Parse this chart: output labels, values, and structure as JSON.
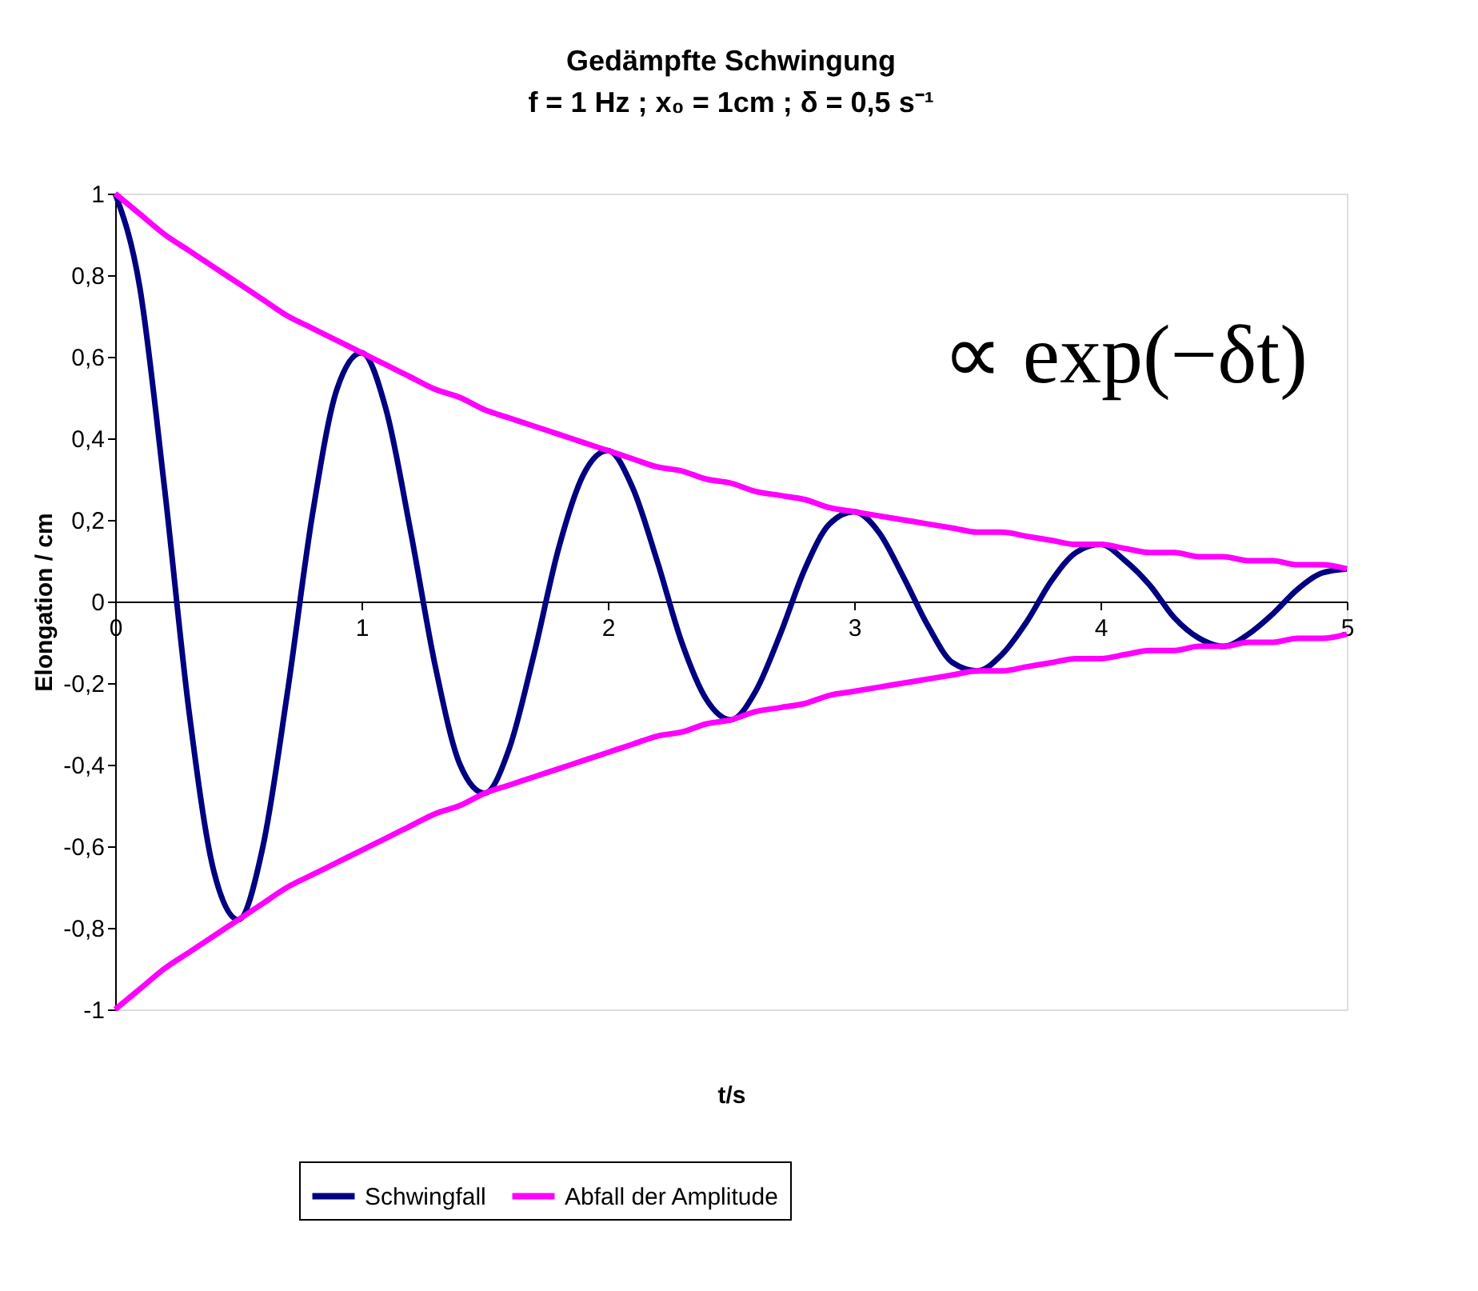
{
  "chart_data": {
    "type": "line",
    "title": "Gedämpfte Schwingung",
    "subtitle": "f = 1 Hz ; x₀ = 1cm ; δ = 0,5 s⁻¹",
    "xlabel": "t/s",
    "ylabel": "Elongation / cm",
    "annotations": [
      "∝ exp(−δt)"
    ],
    "x": [
      0,
      0.1,
      0.2,
      0.3,
      0.4,
      0.5,
      0.6,
      0.7,
      0.8,
      0.9,
      1,
      1.1,
      1.2,
      1.3,
      1.4,
      1.5,
      1.6,
      1.7,
      1.8,
      1.9,
      2,
      2.1,
      2.2,
      2.3,
      2.4,
      2.5,
      2.6,
      2.7,
      2.8,
      2.9,
      3,
      3.1,
      3.2,
      3.3,
      3.4,
      3.5,
      3.6,
      3.7,
      3.8,
      3.9,
      4,
      4.1,
      4.2,
      4.3,
      4.4,
      4.5,
      4.6,
      4.7,
      4.8,
      4.9,
      5
    ],
    "series": [
      {
        "name": "Schwingfall",
        "color": "#000080",
        "values": [
          1,
          0.77,
          0.28,
          -0.27,
          -0.66,
          -0.78,
          -0.6,
          -0.22,
          0.21,
          0.52,
          0.61,
          0.47,
          0.17,
          -0.16,
          -0.4,
          -0.47,
          -0.36,
          -0.13,
          0.13,
          0.31,
          0.37,
          0.28,
          0.1,
          -0.1,
          -0.24,
          -0.29,
          -0.22,
          -0.08,
          0.08,
          0.19,
          0.22,
          0.17,
          0.06,
          -0.06,
          -0.15,
          -0.17,
          -0.13,
          -0.05,
          0.05,
          0.12,
          0.14,
          0.1,
          0.04,
          -0.04,
          -0.09,
          -0.11,
          -0.08,
          -0.03,
          0.03,
          0.07,
          0.08
        ]
      },
      {
        "name": "Abfall der Amplitude",
        "color": "#ff00ff",
        "values": [
          1,
          0.95,
          0.9,
          0.86,
          0.82,
          0.78,
          0.74,
          0.7,
          0.67,
          0.64,
          0.61,
          0.58,
          0.55,
          0.52,
          0.5,
          0.47,
          0.45,
          0.43,
          0.41,
          0.39,
          0.37,
          0.35,
          0.33,
          0.32,
          0.3,
          0.29,
          0.27,
          0.26,
          0.25,
          0.23,
          0.22,
          0.21,
          0.2,
          0.19,
          0.18,
          0.17,
          0.17,
          0.16,
          0.15,
          0.14,
          0.14,
          0.13,
          0.12,
          0.12,
          0.11,
          0.11,
          0.1,
          0.1,
          0.09,
          0.09,
          0.08
        ]
      },
      {
        "color": "#ff00ff",
        "values": [
          -1,
          -0.95,
          -0.9,
          -0.86,
          -0.82,
          -0.78,
          -0.74,
          -0.7,
          -0.67,
          -0.64,
          -0.61,
          -0.58,
          -0.55,
          -0.52,
          -0.5,
          -0.47,
          -0.45,
          -0.43,
          -0.41,
          -0.39,
          -0.37,
          -0.35,
          -0.33,
          -0.32,
          -0.3,
          -0.29,
          -0.27,
          -0.26,
          -0.25,
          -0.23,
          -0.22,
          -0.21,
          -0.2,
          -0.19,
          -0.18,
          -0.17,
          -0.17,
          -0.16,
          -0.15,
          -0.14,
          -0.14,
          -0.13,
          -0.12,
          -0.12,
          -0.11,
          -0.11,
          -0.1,
          -0.1,
          -0.09,
          -0.09,
          -0.08
        ]
      }
    ],
    "xlim": [
      0,
      5
    ],
    "xticks": [
      0,
      1,
      2,
      3,
      4,
      5
    ],
    "ylim": [
      -1,
      1
    ],
    "yticks": [
      -1,
      {
        "value": -0.8,
        "label": "-0,8"
      },
      {
        "value": -0.6,
        "label": "-0,6"
      },
      {
        "value": -0.4,
        "label": "-0,4"
      },
      {
        "value": -0.2,
        "label": "-0,2"
      },
      0,
      {
        "value": 0.2,
        "label": "0,2"
      },
      {
        "value": 0.4,
        "label": "0,4"
      },
      {
        "value": 0.6,
        "label": "0,6"
      },
      {
        "value": 0.8,
        "label": "0,8"
      },
      1
    ],
    "grid": false,
    "legend": "bottom",
    "marker": "none",
    "line_style": "solid"
  }
}
